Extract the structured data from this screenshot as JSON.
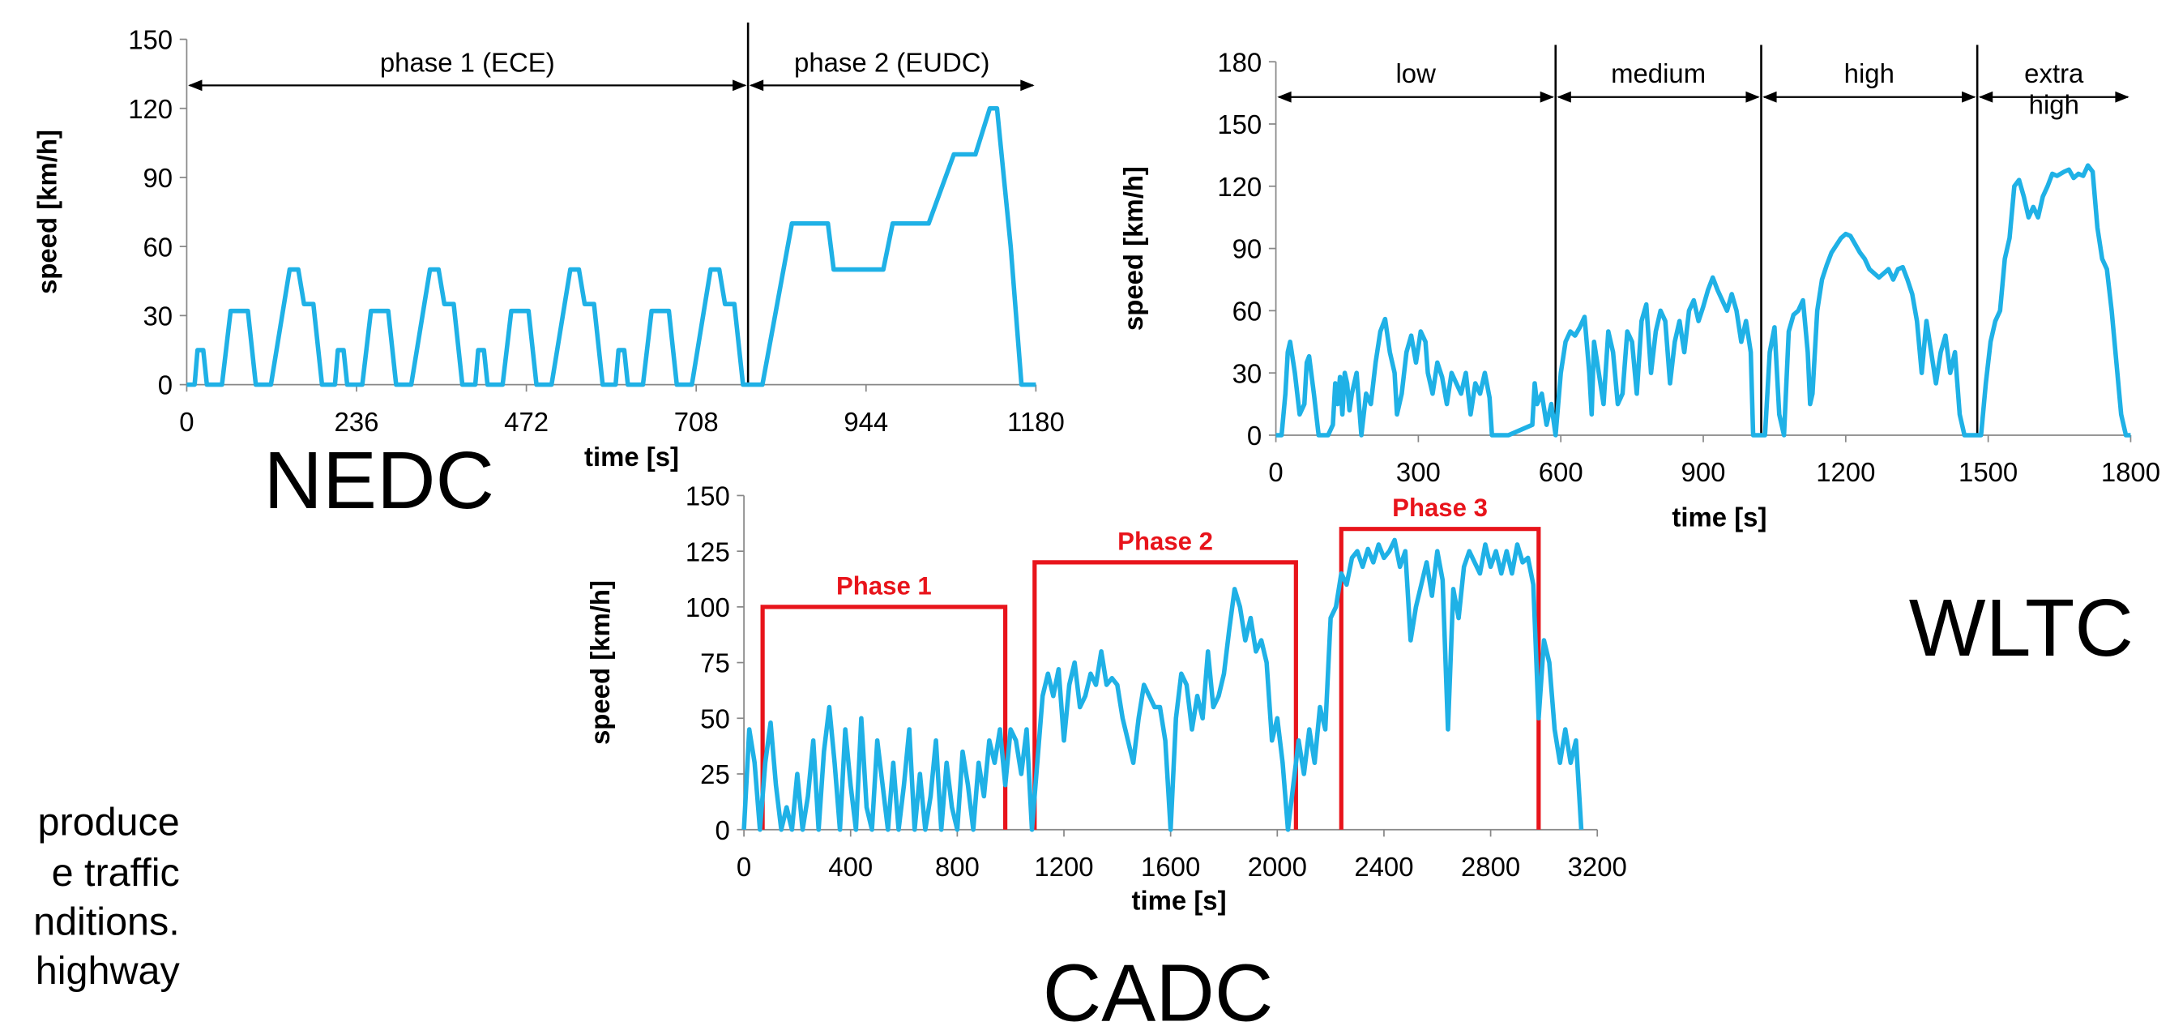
{
  "chart_data": [
    {
      "type": "line",
      "title": "NEDC",
      "x_label": "time [s]",
      "y_label": "speed [km/h]",
      "color": "#1fb1e6",
      "xlim": [
        0,
        1180
      ],
      "xticks": [
        0,
        236,
        472,
        708,
        944,
        1180
      ],
      "ylim": [
        0,
        150
      ],
      "yticks": [
        0,
        30,
        60,
        90,
        120,
        150
      ],
      "annotation_style": "arrow",
      "annotations": [
        {
          "text": "phase 1 (ECE)",
          "x_start": 0,
          "x_end": 780,
          "y": 130
        },
        {
          "text": "phase 2 (EUDC)",
          "x_start": 780,
          "x_end": 1180,
          "y": 130
        }
      ],
      "x": [
        0,
        11,
        15,
        23,
        28,
        49,
        61,
        85,
        96,
        117,
        143,
        155,
        163,
        176,
        188,
        195,
        206,
        210,
        218,
        223,
        244,
        256,
        280,
        291,
        312,
        338,
        350,
        358,
        371,
        383,
        390,
        401,
        405,
        413,
        418,
        439,
        451,
        475,
        486,
        507,
        533,
        545,
        553,
        566,
        578,
        585,
        596,
        600,
        608,
        613,
        634,
        646,
        670,
        681,
        702,
        728,
        740,
        748,
        761,
        773,
        780,
        800,
        841,
        891,
        899,
        968,
        981,
        1031,
        1066,
        1096,
        1116,
        1126,
        1145,
        1160,
        1180
      ],
      "values": [
        0,
        0,
        15,
        15,
        0,
        0,
        32,
        32,
        0,
        0,
        50,
        50,
        35,
        35,
        0,
        0,
        0,
        15,
        15,
        0,
        0,
        32,
        32,
        0,
        0,
        50,
        50,
        35,
        35,
        0,
        0,
        0,
        15,
        15,
        0,
        0,
        32,
        32,
        0,
        0,
        50,
        50,
        35,
        35,
        0,
        0,
        0,
        15,
        15,
        0,
        0,
        32,
        32,
        0,
        0,
        50,
        50,
        35,
        35,
        0,
        0,
        0,
        70,
        70,
        50,
        50,
        70,
        70,
        100,
        100,
        120,
        120,
        60,
        0,
        0
      ]
    },
    {
      "type": "line",
      "title": "WLTC",
      "x_label": "time [s]",
      "y_label": "speed [km/h]",
      "color": "#1fb1e6",
      "xlim": [
        0,
        1800
      ],
      "xticks": [
        0,
        300,
        600,
        900,
        1200,
        1500,
        1800
      ],
      "ylim": [
        0,
        180
      ],
      "yticks": [
        0,
        30,
        60,
        90,
        120,
        150,
        180
      ],
      "annotation_style": "arrow",
      "annotations": [
        {
          "text": "low",
          "x_start": 0,
          "x_end": 589,
          "y": 163
        },
        {
          "text": "medium",
          "x_start": 589,
          "x_end": 1022,
          "y": 163
        },
        {
          "text": "high",
          "x_start": 1022,
          "x_end": 1477,
          "y": 163
        },
        {
          "text": "extra high",
          "x_start": 1477,
          "x_end": 1800,
          "y": 163
        }
      ],
      "x": [
        0,
        12,
        20,
        25,
        30,
        40,
        50,
        60,
        65,
        70,
        80,
        90,
        110,
        120,
        125,
        130,
        135,
        140,
        145,
        150,
        155,
        160,
        170,
        175,
        180,
        190,
        200,
        210,
        220,
        230,
        240,
        250,
        255,
        265,
        275,
        285,
        295,
        305,
        315,
        320,
        330,
        340,
        350,
        360,
        370,
        380,
        390,
        400,
        410,
        420,
        430,
        440,
        450,
        455,
        490,
        540,
        545,
        550,
        560,
        570,
        580,
        589,
        600,
        610,
        620,
        630,
        640,
        650,
        660,
        665,
        670,
        680,
        690,
        700,
        710,
        720,
        730,
        740,
        750,
        760,
        770,
        780,
        790,
        800,
        810,
        820,
        830,
        840,
        850,
        860,
        870,
        880,
        890,
        900,
        910,
        920,
        930,
        940,
        950,
        960,
        970,
        980,
        990,
        1000,
        1005,
        1022,
        1030,
        1040,
        1050,
        1060,
        1070,
        1080,
        1090,
        1100,
        1110,
        1120,
        1125,
        1130,
        1140,
        1150,
        1160,
        1170,
        1190,
        1200,
        1210,
        1220,
        1230,
        1240,
        1250,
        1260,
        1270,
        1280,
        1290,
        1300,
        1310,
        1320,
        1330,
        1340,
        1350,
        1360,
        1370,
        1380,
        1390,
        1400,
        1410,
        1420,
        1430,
        1440,
        1450,
        1477,
        1485,
        1495,
        1505,
        1515,
        1525,
        1535,
        1545,
        1555,
        1565,
        1575,
        1585,
        1595,
        1605,
        1615,
        1625,
        1635,
        1645,
        1660,
        1670,
        1680,
        1690,
        1700,
        1710,
        1720,
        1730,
        1740,
        1750,
        1760,
        1770,
        1780,
        1790,
        1800
      ],
      "values": [
        0,
        0,
        20,
        40,
        45,
        30,
        10,
        15,
        35,
        38,
        20,
        0,
        0,
        5,
        25,
        15,
        28,
        10,
        30,
        25,
        12,
        20,
        30,
        15,
        0,
        20,
        15,
        35,
        50,
        56,
        40,
        30,
        10,
        20,
        40,
        48,
        35,
        50,
        45,
        30,
        20,
        35,
        28,
        15,
        30,
        25,
        20,
        30,
        10,
        25,
        20,
        30,
        18,
        0,
        0,
        5,
        25,
        15,
        20,
        5,
        15,
        0,
        30,
        45,
        50,
        48,
        52,
        57,
        30,
        10,
        45,
        30,
        15,
        50,
        40,
        15,
        20,
        50,
        45,
        20,
        55,
        63,
        30,
        50,
        60,
        55,
        25,
        45,
        55,
        40,
        60,
        65,
        55,
        62,
        70,
        76,
        70,
        65,
        60,
        68,
        60,
        45,
        55,
        40,
        0,
        0,
        0,
        40,
        52,
        10,
        0,
        50,
        58,
        60,
        65,
        40,
        15,
        20,
        60,
        75,
        82,
        88,
        95,
        97,
        96,
        92,
        88,
        85,
        80,
        78,
        76,
        78,
        80,
        75,
        80,
        81,
        75,
        68,
        55,
        30,
        55,
        40,
        25,
        40,
        48,
        30,
        40,
        10,
        0,
        0,
        0,
        25,
        45,
        55,
        60,
        85,
        95,
        120,
        123,
        115,
        105,
        110,
        105,
        115,
        120,
        126,
        125,
        127,
        128,
        124,
        126,
        125,
        130,
        127,
        100,
        85,
        80,
        60,
        35,
        10,
        0,
        0
      ]
    },
    {
      "type": "line",
      "title": "CADC",
      "x_label": "time [s]",
      "y_label": "speed [km/h]",
      "color": "#1fb1e6",
      "xlim": [
        0,
        3200
      ],
      "xticks": [
        0,
        400,
        800,
        1200,
        1600,
        2000,
        2400,
        2800,
        3200
      ],
      "ylim": [
        0,
        150
      ],
      "yticks": [
        0,
        25,
        50,
        75,
        100,
        125,
        150
      ],
      "annotation_style": "box",
      "annotation_color": "#e8141b",
      "annotations": [
        {
          "text": "Phase 1",
          "x_start": 70,
          "x_end": 980,
          "y": 100
        },
        {
          "text": "Phase 2",
          "x_start": 1090,
          "x_end": 2070,
          "y": 120
        },
        {
          "text": "Phase 3",
          "x_start": 2240,
          "x_end": 2980,
          "y": 135
        }
      ],
      "x": [
        0,
        20,
        40,
        60,
        80,
        100,
        120,
        140,
        160,
        180,
        200,
        220,
        240,
        260,
        280,
        300,
        320,
        340,
        360,
        380,
        400,
        420,
        440,
        460,
        480,
        500,
        520,
        540,
        560,
        580,
        600,
        620,
        640,
        660,
        680,
        700,
        720,
        740,
        760,
        780,
        800,
        820,
        840,
        860,
        880,
        900,
        920,
        940,
        960,
        980,
        1000,
        1020,
        1040,
        1060,
        1080,
        1100,
        1120,
        1140,
        1160,
        1180,
        1200,
        1220,
        1240,
        1260,
        1280,
        1300,
        1320,
        1340,
        1360,
        1380,
        1400,
        1420,
        1440,
        1460,
        1480,
        1500,
        1520,
        1540,
        1560,
        1580,
        1600,
        1620,
        1640,
        1660,
        1680,
        1700,
        1720,
        1740,
        1760,
        1780,
        1800,
        1820,
        1840,
        1860,
        1880,
        1900,
        1920,
        1940,
        1960,
        1980,
        2000,
        2020,
        2040,
        2060,
        2080,
        2100,
        2120,
        2140,
        2160,
        2180,
        2200,
        2220,
        2240,
        2260,
        2280,
        2300,
        2320,
        2340,
        2360,
        2380,
        2400,
        2420,
        2440,
        2460,
        2480,
        2500,
        2520,
        2540,
        2560,
        2580,
        2600,
        2620,
        2640,
        2660,
        2680,
        2700,
        2720,
        2740,
        2760,
        2780,
        2800,
        2820,
        2840,
        2860,
        2880,
        2900,
        2920,
        2940,
        2960,
        2980,
        3000,
        3020,
        3040,
        3060,
        3080,
        3100,
        3120,
        3140
      ],
      "values": [
        0,
        45,
        30,
        0,
        30,
        48,
        20,
        0,
        10,
        0,
        25,
        0,
        15,
        40,
        0,
        35,
        55,
        30,
        0,
        45,
        20,
        0,
        50,
        10,
        0,
        40,
        20,
        0,
        30,
        0,
        20,
        45,
        0,
        25,
        0,
        15,
        40,
        0,
        30,
        10,
        0,
        35,
        20,
        0,
        30,
        15,
        40,
        30,
        45,
        20,
        45,
        40,
        25,
        45,
        0,
        30,
        60,
        70,
        60,
        72,
        40,
        65,
        75,
        55,
        60,
        70,
        65,
        80,
        65,
        68,
        65,
        50,
        40,
        30,
        50,
        65,
        60,
        55,
        55,
        40,
        0,
        50,
        70,
        65,
        45,
        60,
        50,
        80,
        55,
        60,
        70,
        90,
        108,
        100,
        85,
        95,
        80,
        85,
        75,
        40,
        50,
        30,
        0,
        20,
        40,
        25,
        45,
        30,
        55,
        45,
        95,
        100,
        115,
        110,
        122,
        125,
        118,
        126,
        120,
        128,
        122,
        125,
        130,
        118,
        125,
        85,
        100,
        110,
        120,
        105,
        125,
        112,
        45,
        108,
        95,
        118,
        125,
        120,
        115,
        128,
        118,
        125,
        115,
        125,
        115,
        128,
        120,
        122,
        110,
        50,
        85,
        75,
        45,
        30,
        45,
        30,
        40,
        0
      ]
    }
  ],
  "text_fragment": [
    "produce",
    "e traffic",
    "nditions.",
    "highway"
  ]
}
